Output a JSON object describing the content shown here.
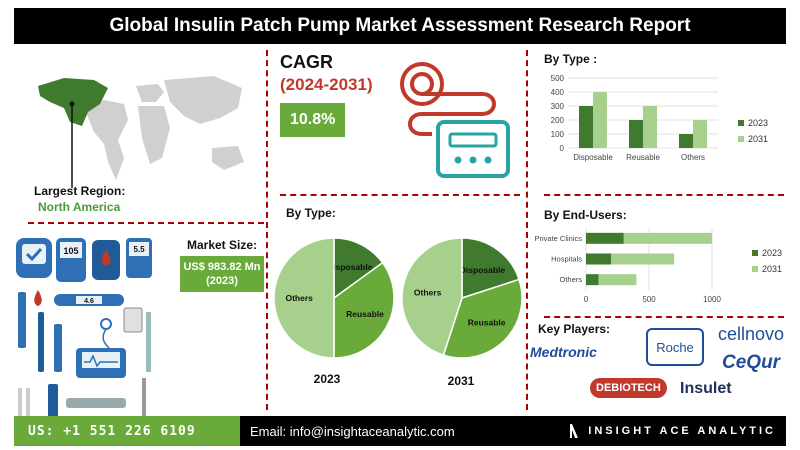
{
  "title": "Global Insulin Patch Pump Market Assessment Research Report",
  "largest_region": {
    "label": "Largest Region:",
    "value": "North America"
  },
  "market_size": {
    "label": "Market Size:",
    "value": "US$ 983.82 Mn (2023)"
  },
  "cagr": {
    "label": "CAGR",
    "period": "(2024-2031)",
    "value": "10.8%"
  },
  "by_type_title": "By Type :",
  "by_type_pie_title": "By Type:",
  "by_end_users_title": "By End-Users:",
  "key_players_title": "Key Players:",
  "key_players": [
    "Medtronic",
    "Roche",
    "cellnovo",
    "CeQur",
    "DEBIOTECH",
    "Insulet"
  ],
  "pump_display": "105",
  "meter_display_1": "4.6",
  "meter_display_2": "5.5",
  "footer": {
    "phone": "US: +1 551 226 6109",
    "email": "Email: info@insightaceanalytic.com",
    "brand": "INSIGHT ACE ANALYTIC"
  },
  "colors": {
    "green_dark": "#3f7a2e",
    "green_mid": "#6aaa3a",
    "green_light": "#a8d08d",
    "red": "#c0392b"
  },
  "chart_data": [
    {
      "type": "bar",
      "title": "By Type :",
      "categories": [
        "Disposable",
        "Reusable",
        "Others"
      ],
      "series": [
        {
          "name": "2023",
          "values": [
            300,
            200,
            100
          ]
        },
        {
          "name": "2031",
          "values": [
            400,
            300,
            200
          ]
        }
      ],
      "ylim": [
        0,
        500
      ],
      "yticks": [
        0,
        100,
        200,
        300,
        400,
        500
      ],
      "legend": "right"
    },
    {
      "type": "bar",
      "orientation": "horizontal",
      "title": "By End-Users:",
      "categories": [
        "Private Clinics",
        "Hospitals",
        "Others"
      ],
      "series": [
        {
          "name": "2023",
          "values": [
            300,
            200,
            100
          ]
        },
        {
          "name": "2031",
          "values": [
            700,
            500,
            300
          ]
        }
      ],
      "xlim": [
        0,
        1000
      ],
      "xticks": [
        0,
        500,
        1000
      ],
      "legend": "right",
      "stacked": true
    },
    {
      "type": "pie",
      "title": "By Type:",
      "caption": "2023",
      "labels": [
        "Disposable",
        "Reusable",
        "Others"
      ],
      "values": [
        15,
        35,
        50
      ]
    },
    {
      "type": "pie",
      "title": "By Type:",
      "caption": "2031",
      "labels": [
        "Disposable",
        "Reusable",
        "Others"
      ],
      "values": [
        20,
        35,
        45
      ]
    }
  ]
}
